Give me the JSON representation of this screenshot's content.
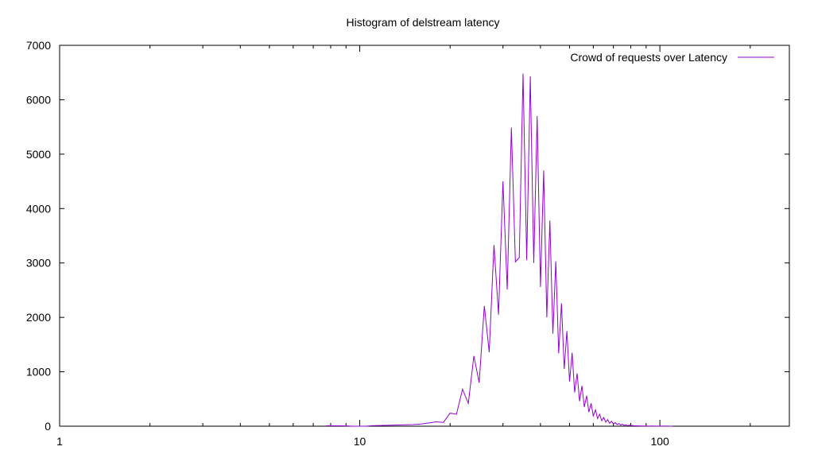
{
  "chart_data": {
    "type": "line",
    "title": "Histogram of delstream latency",
    "xlabel": "",
    "ylabel": "",
    "xscale": "log",
    "xlim": [
      1,
      270
    ],
    "ylim": [
      0,
      7000
    ],
    "xticks": [
      1,
      10,
      100
    ],
    "xtick_labels": [
      "1",
      "10",
      "100"
    ],
    "yticks": [
      0,
      1000,
      2000,
      3000,
      4000,
      5000,
      6000,
      7000
    ],
    "ytick_labels": [
      "0",
      "1000",
      "2000",
      "3000",
      "4000",
      "5000",
      "6000",
      "7000"
    ],
    "grid": false,
    "legend_position": "top-right",
    "series": [
      {
        "name": "Crowd of requests over Latency",
        "color": "#9400d3",
        "x": [
          7.7,
          8,
          8.5,
          9,
          9.5,
          10,
          10.5,
          11,
          12,
          13,
          14,
          15,
          16,
          17,
          18,
          19,
          20,
          21,
          22,
          23,
          24,
          25,
          26,
          27,
          28,
          29,
          30,
          31,
          32,
          33,
          34,
          35,
          36,
          37,
          38,
          39,
          40,
          41,
          42,
          43,
          44,
          45,
          46,
          47,
          48,
          49,
          50,
          51,
          52,
          53,
          54,
          55,
          56,
          57,
          58,
          59,
          60,
          61,
          62,
          63,
          64,
          65,
          66,
          67,
          68,
          69,
          70,
          71,
          72,
          73,
          74,
          75,
          76,
          77,
          78,
          79,
          80,
          81,
          82,
          83,
          84,
          85,
          86,
          87,
          88,
          89,
          90,
          92,
          94,
          96,
          98,
          100,
          103,
          106,
          110
        ],
        "y": [
          5,
          10,
          8,
          6,
          0,
          0,
          0,
          10,
          15,
          20,
          25,
          30,
          40,
          60,
          80,
          70,
          240,
          220,
          680,
          420,
          1290,
          800,
          2210,
          1360,
          3330,
          2050,
          4500,
          2510,
          5490,
          3020,
          3100,
          6480,
          3050,
          6430,
          3000,
          5700,
          2560,
          4700,
          2000,
          3780,
          1700,
          3030,
          1340,
          2260,
          1050,
          1750,
          820,
          1350,
          620,
          970,
          460,
          740,
          350,
          560,
          260,
          420,
          190,
          300,
          140,
          220,
          100,
          160,
          75,
          120,
          55,
          90,
          40,
          65,
          30,
          50,
          20,
          35,
          15,
          25,
          10,
          20,
          8,
          14,
          6,
          10,
          5,
          8,
          4,
          6,
          3,
          4,
          3,
          2,
          3,
          1,
          2,
          1,
          1,
          1,
          0
        ]
      }
    ]
  }
}
